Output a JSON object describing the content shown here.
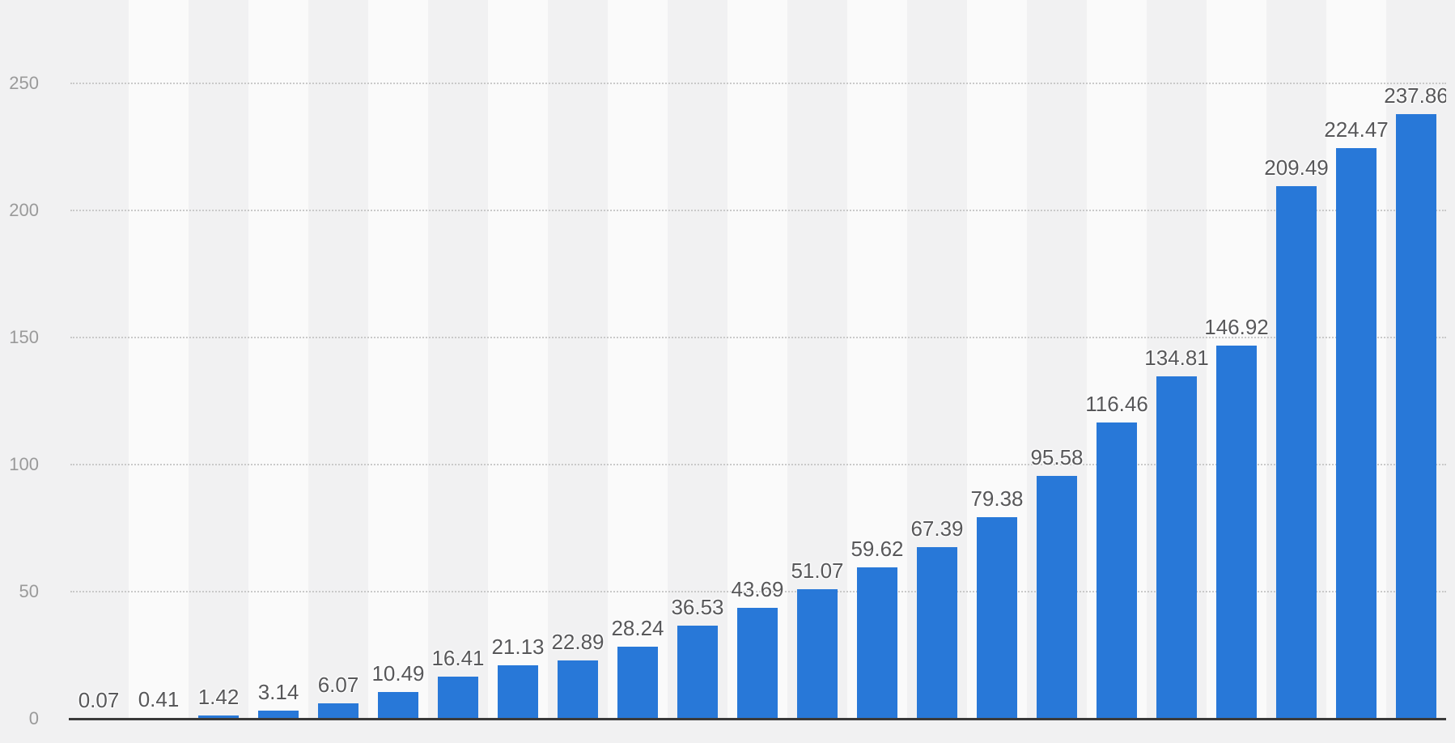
{
  "chart_data": {
    "type": "bar",
    "title": "",
    "xlabel": "",
    "ylabel": "",
    "values": [
      0.07,
      0.41,
      1.42,
      3.14,
      6.07,
      10.49,
      16.41,
      21.13,
      22.89,
      28.24,
      36.53,
      43.69,
      51.07,
      59.62,
      67.39,
      79.38,
      95.58,
      116.46,
      134.81,
      146.92,
      209.49,
      224.47,
      237.86
    ],
    "labels": [
      "0.07",
      "0.41",
      "1.42",
      "3.14",
      "6.07",
      "10.49",
      "16.41",
      "21.13",
      "22.89",
      "28.24",
      "36.53",
      "43.69",
      "51.07",
      "59.62",
      "67.39",
      "79.38",
      "95.58",
      "116.46",
      "134.81",
      "146.92",
      "209.49",
      "224.47",
      "237.86"
    ],
    "y_ticks": [
      {
        "label": "250",
        "value": 250
      },
      {
        "label": "200",
        "value": 200
      },
      {
        "label": "150",
        "value": 150
      },
      {
        "label": "100",
        "value": 100
      },
      {
        "label": "50",
        "value": 50
      },
      {
        "label": "0",
        "value": 0
      }
    ],
    "ylim": [
      0,
      283
    ],
    "grid": "horizontal-dotted",
    "legend_position": "none",
    "x_tick_labels_visible": false,
    "data_labels_visible": true
  },
  "colors": {
    "bar": "#2878d8",
    "band_dark": "#f1f1f2",
    "band_light": "#fafafa",
    "page_background": "#f1f1f2",
    "gridline": "#c9c9c9",
    "axis_line": "#3a3a3a",
    "data_label": "#58585a",
    "tick_label": "#9a9a9a"
  }
}
